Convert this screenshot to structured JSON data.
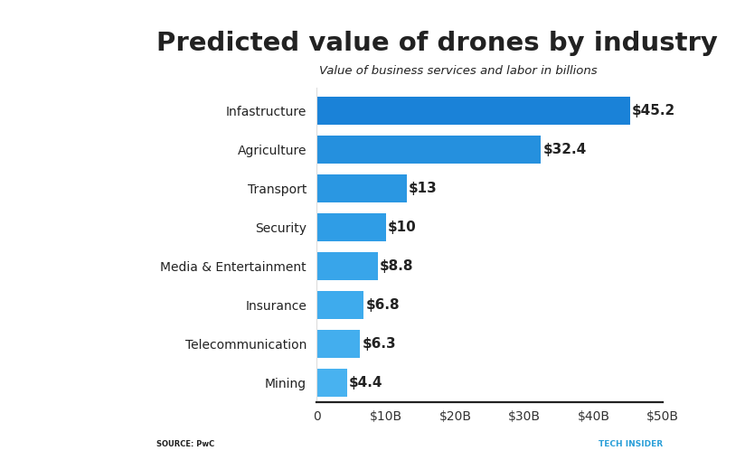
{
  "chart_data": {
    "type": "bar",
    "orientation": "horizontal",
    "title": "Predicted value of drones by industry",
    "subtitle": "Value of business services and labor in billions",
    "categories": [
      "Infastructure",
      "Agriculture",
      "Transport",
      "Security",
      "Media & Entertainment",
      "Insurance",
      "Telecommunication",
      "Mining"
    ],
    "values": [
      45.2,
      32.4,
      13,
      10,
      8.8,
      6.8,
      6.3,
      4.4
    ],
    "value_labels": [
      "$45.2",
      "$32.4",
      "$13",
      "$10",
      "$8.8",
      "$6.8",
      "$6.3",
      "$4.4"
    ],
    "data_labels": true,
    "colors": [
      "#1a82d8",
      "#2590de",
      "#2a97e2",
      "#2f9de6",
      "#38a5ea",
      "#3eabed",
      "#43aeee",
      "#48b2f0"
    ],
    "xlim": [
      0,
      50
    ],
    "xticks": [
      0,
      {
        "value": 10,
        "label": "$10B"
      },
      {
        "value": 20,
        "label": "$20B"
      },
      {
        "value": 30,
        "label": "$30B"
      },
      {
        "value": 40,
        "label": "$40B"
      },
      {
        "value": 50,
        "label": "$50B"
      }
    ],
    "grid": false,
    "source": "SOURCE: PwC",
    "credit": "TECH INSIDER"
  }
}
